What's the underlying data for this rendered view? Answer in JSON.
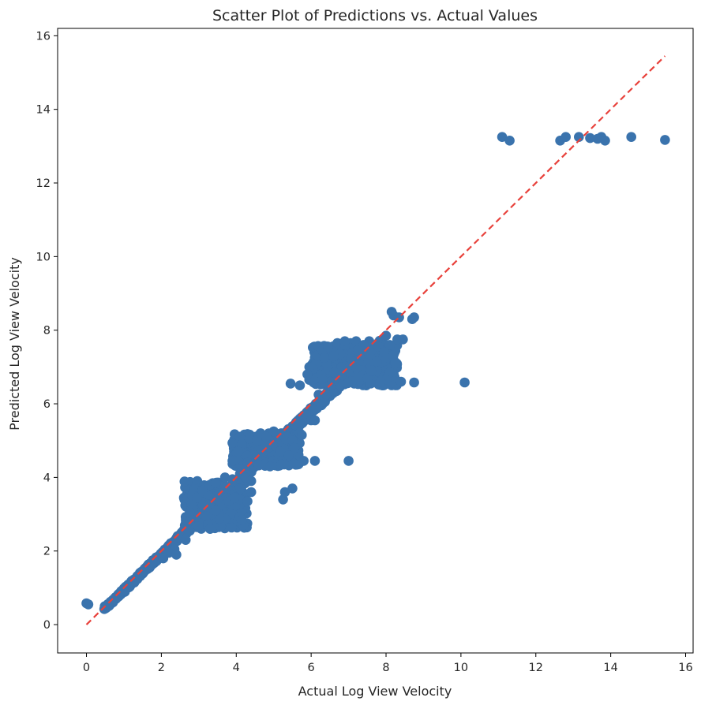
{
  "chart_data": {
    "type": "scatter",
    "title": "Scatter Plot of Predictions vs. Actual Values",
    "xlabel": "Actual Log View Velocity",
    "ylabel": "Predicted Log View Velocity",
    "xlim": [
      -0.77,
      16.2
    ],
    "ylim": [
      -0.77,
      16.2
    ],
    "xticks": [
      0,
      2,
      4,
      6,
      8,
      10,
      12,
      14,
      16
    ],
    "yticks": [
      0,
      2,
      4,
      6,
      8,
      10,
      12,
      14,
      16
    ],
    "grid": false,
    "colors": {
      "points": "#3a73ad",
      "reference_line": "#e8413b"
    },
    "reference_line": {
      "style": "dashed",
      "x": [
        0,
        15.45
      ],
      "y": [
        0,
        15.45
      ]
    },
    "series": [
      {
        "points": [
          [
            0.0,
            0.58
          ],
          [
            0.05,
            0.55
          ],
          [
            11.1,
            13.25
          ],
          [
            11.3,
            13.15
          ],
          [
            12.65,
            13.15
          ],
          [
            12.8,
            13.25
          ],
          [
            13.15,
            13.25
          ],
          [
            13.45,
            13.22
          ],
          [
            13.65,
            13.2
          ],
          [
            13.75,
            13.25
          ],
          [
            13.85,
            13.15
          ],
          [
            14.55,
            13.25
          ],
          [
            15.45,
            13.17
          ],
          [
            10.1,
            6.58
          ],
          [
            8.75,
            6.58
          ],
          [
            8.4,
            6.6
          ],
          [
            8.45,
            7.75
          ],
          [
            8.3,
            7.75
          ],
          [
            8.0,
            7.85
          ],
          [
            8.15,
            8.5
          ],
          [
            8.2,
            8.4
          ],
          [
            8.35,
            8.35
          ],
          [
            8.75,
            8.35
          ],
          [
            8.7,
            8.3
          ],
          [
            8.1,
            6.55
          ],
          [
            7.0,
            4.45
          ],
          [
            6.1,
            4.45
          ],
          [
            5.8,
            4.45
          ],
          [
            5.25,
            3.4
          ],
          [
            5.5,
            3.7
          ],
          [
            5.3,
            3.6
          ],
          [
            6.0,
            5.55
          ],
          [
            6.1,
            5.55
          ],
          [
            5.7,
            5.2
          ],
          [
            5.75,
            5.15
          ],
          [
            6.2,
            6.25
          ],
          [
            6.4,
            6.25
          ],
          [
            5.45,
            6.55
          ],
          [
            5.7,
            6.5
          ],
          [
            5.95,
            6.65
          ],
          [
            6.3,
            7.45
          ],
          [
            6.45,
            7.55
          ],
          [
            6.6,
            7.3
          ],
          [
            6.4,
            7.1
          ],
          [
            7.05,
            7.65
          ],
          [
            7.2,
            7.7
          ],
          [
            7.55,
            7.7
          ],
          [
            6.7,
            7.65
          ],
          [
            6.9,
            7.6
          ],
          [
            7.4,
            7.6
          ],
          [
            7.8,
            7.55
          ],
          [
            7.95,
            7.4
          ],
          [
            8.1,
            7.6
          ],
          [
            8.25,
            7.1
          ],
          [
            8.1,
            6.85
          ],
          [
            8.0,
            6.65
          ],
          [
            5.95,
            7.0
          ],
          [
            5.9,
            6.8
          ],
          [
            6.35,
            7.25
          ],
          [
            6.9,
            7.7
          ],
          [
            7.25,
            7.45
          ],
          [
            7.55,
            7.35
          ],
          [
            7.75,
            7.15
          ],
          [
            7.6,
            6.9
          ],
          [
            7.85,
            6.6
          ],
          [
            4.15,
            4.9
          ],
          [
            4.35,
            5.05
          ],
          [
            4.55,
            5.0
          ],
          [
            4.65,
            5.2
          ],
          [
            4.8,
            5.1
          ],
          [
            5.0,
            5.25
          ],
          [
            5.2,
            5.2
          ],
          [
            5.35,
            5.1
          ],
          [
            5.5,
            5.0
          ],
          [
            5.55,
            4.8
          ],
          [
            5.45,
            4.55
          ],
          [
            5.2,
            4.35
          ],
          [
            4.9,
            4.3
          ],
          [
            4.6,
            4.35
          ],
          [
            4.3,
            4.4
          ],
          [
            4.0,
            4.5
          ],
          [
            3.9,
            4.45
          ],
          [
            4.05,
            4.7
          ],
          [
            5.4,
            4.6
          ],
          [
            4.1,
            3.4
          ],
          [
            4.3,
            3.35
          ],
          [
            3.6,
            3.25
          ],
          [
            3.5,
            3.4
          ],
          [
            3.3,
            2.6
          ],
          [
            3.2,
            2.95
          ],
          [
            3.45,
            3.1
          ],
          [
            3.8,
            3.35
          ],
          [
            3.95,
            3.45
          ],
          [
            2.95,
            3.45
          ],
          [
            3.1,
            3.65
          ],
          [
            3.3,
            3.8
          ],
          [
            3.45,
            3.85
          ],
          [
            3.7,
            4.0
          ],
          [
            3.9,
            3.95
          ],
          [
            4.1,
            4.1
          ],
          [
            4.25,
            4.0
          ],
          [
            4.4,
            3.9
          ],
          [
            4.4,
            3.6
          ],
          [
            2.7,
            2.6
          ],
          [
            2.5,
            2.35
          ],
          [
            2.65,
            2.3
          ],
          [
            2.35,
            2.05
          ],
          [
            2.2,
            1.95
          ],
          [
            2.05,
            1.8
          ],
          [
            2.4,
            1.9
          ]
        ]
      }
    ],
    "clusters": [
      {
        "x_range": [
          0.5,
          8.5
        ],
        "y_range": [
          0.45,
          8.5
        ],
        "kind": "line",
        "x0": 0.45,
        "y0": 0.42,
        "x1": 7.9,
        "y1": 7.75,
        "spread": 0.55,
        "count": 1600
      },
      {
        "kind": "box",
        "x_range": [
          6.0,
          8.3
        ],
        "y_range": [
          6.5,
          7.6
        ],
        "count": 400
      },
      {
        "kind": "box",
        "x_range": [
          3.9,
          5.7
        ],
        "y_range": [
          4.3,
          5.2
        ],
        "count": 260
      },
      {
        "kind": "box",
        "x_range": [
          2.6,
          4.3
        ],
        "y_range": [
          2.6,
          3.9
        ],
        "count": 240
      }
    ]
  }
}
